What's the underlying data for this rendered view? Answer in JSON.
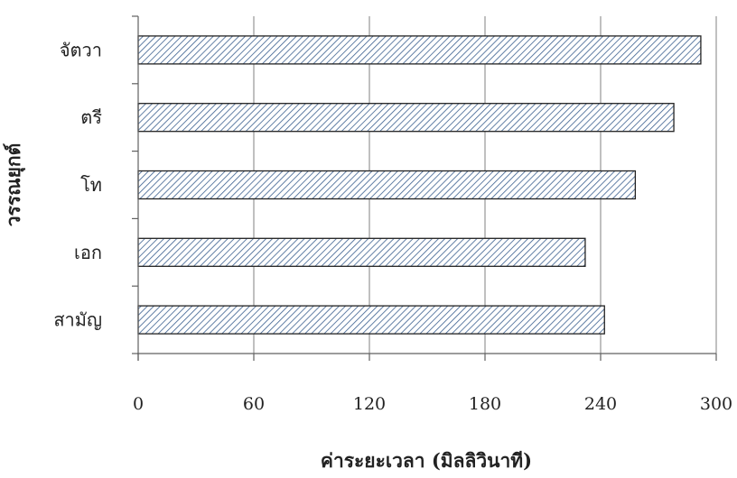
{
  "chart_data": {
    "type": "bar",
    "orientation": "horizontal",
    "categories": [
      "จัตวา",
      "ตรี",
      "โท",
      "เอก",
      "สามัญ"
    ],
    "values": [
      292,
      278,
      258,
      232,
      242
    ],
    "xlabel": "ค่าระยะเวลา (มิลลิวินาที)",
    "ylabel": "วรรณยุกต์",
    "xlim": [
      0,
      300
    ],
    "xticks": [
      0,
      60,
      120,
      180,
      240,
      300
    ],
    "grid": "vertical",
    "legend": "none",
    "bar_pattern": "diagonal-hatch",
    "colors": {
      "bar_fill": "#ffffff",
      "bar_stroke": "#222222",
      "hatch": "#3a5f8f",
      "grid": "#808080"
    }
  }
}
